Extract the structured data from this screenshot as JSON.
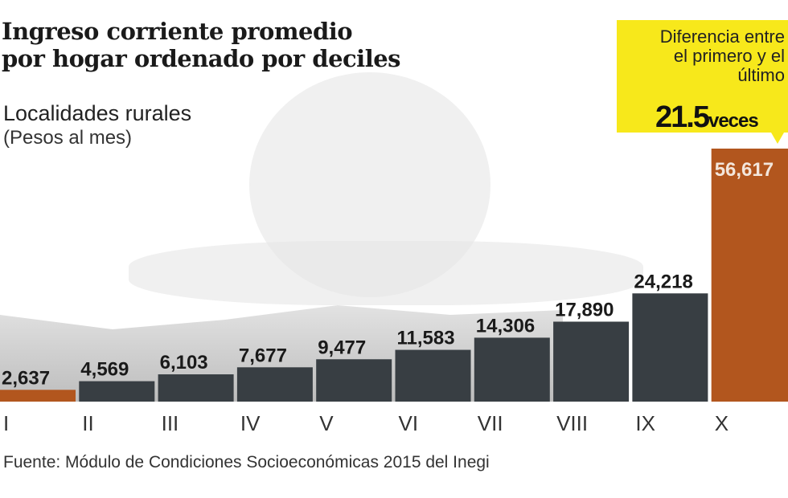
{
  "title_lines": [
    "Ingreso corriente promedio",
    "por hogar ordenado por deciles"
  ],
  "subtitle": "Localidades rurales",
  "unit": "(Pesos al mes)",
  "callout": {
    "lines": [
      "Diferencia entre",
      "el primero y el",
      "último"
    ],
    "value": "21.5",
    "value_unit": "veces"
  },
  "source": "Fuente: Módulo de Condiciones Socioeconómicas 2015 del Inegi",
  "colors": {
    "dark_bar": "#383e43",
    "highlight_bar": "#b2561e",
    "callout": "#f7e81b"
  },
  "chart_data": {
    "type": "bar",
    "title": "Ingreso corriente promedio por hogar ordenado por deciles",
    "categories": [
      "I",
      "II",
      "III",
      "IV",
      "V",
      "VI",
      "VII",
      "VIII",
      "IX",
      "X"
    ],
    "values": [
      2637,
      4569,
      6103,
      7677,
      9477,
      11583,
      14306,
      17890,
      24218,
      56617
    ],
    "value_labels": [
      "2,637",
      "4,569",
      "6,103",
      "7,677",
      "9,477",
      "11,583",
      "14,306",
      "17,890",
      "24,218",
      "56,617"
    ],
    "highlighted": [
      "I",
      "X"
    ],
    "ylabel": "",
    "xlabel": "",
    "grid": false
  }
}
